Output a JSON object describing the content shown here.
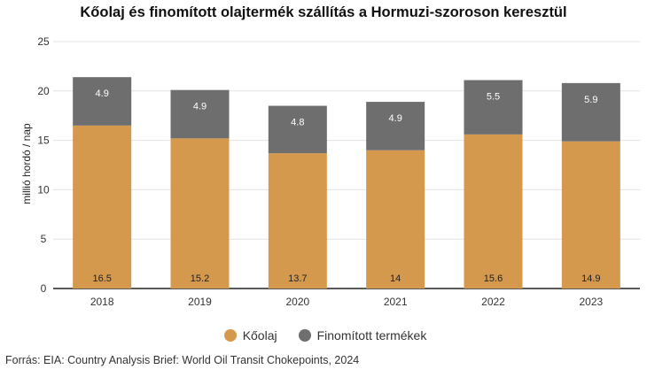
{
  "title": "Kőolaj és finomított olajtermék szállítás a Hormuzi-szoroson keresztül",
  "source": "Forrás: EIA: Country Analysis Brief: World Oil Transit Chokepoints, 2024",
  "colors": {
    "crude": "#D4994D",
    "refined": "#6E6E6E"
  },
  "chart_data": {
    "type": "bar",
    "stacked": true,
    "categories": [
      "2018",
      "2019",
      "2020",
      "2021",
      "2022",
      "2023"
    ],
    "series": [
      {
        "name": "Kőolaj",
        "values": [
          16.5,
          15.2,
          13.7,
          14,
          15.6,
          14.9
        ],
        "labels": [
          "16.5",
          "15.2",
          "13.7",
          "14",
          "15.6",
          "14.9"
        ]
      },
      {
        "name": "Finomított termékek",
        "values": [
          4.9,
          4.9,
          4.8,
          4.9,
          5.5,
          5.9
        ],
        "labels": [
          "4.9",
          "4.9",
          "4.8",
          "4.9",
          "5.5",
          "5.9"
        ]
      }
    ],
    "ylabel": "millió hordó / nap",
    "ylim": [
      0,
      25
    ],
    "yticks": [
      0,
      5,
      10,
      15,
      20,
      25
    ],
    "grid": true,
    "legend": "bottom"
  }
}
